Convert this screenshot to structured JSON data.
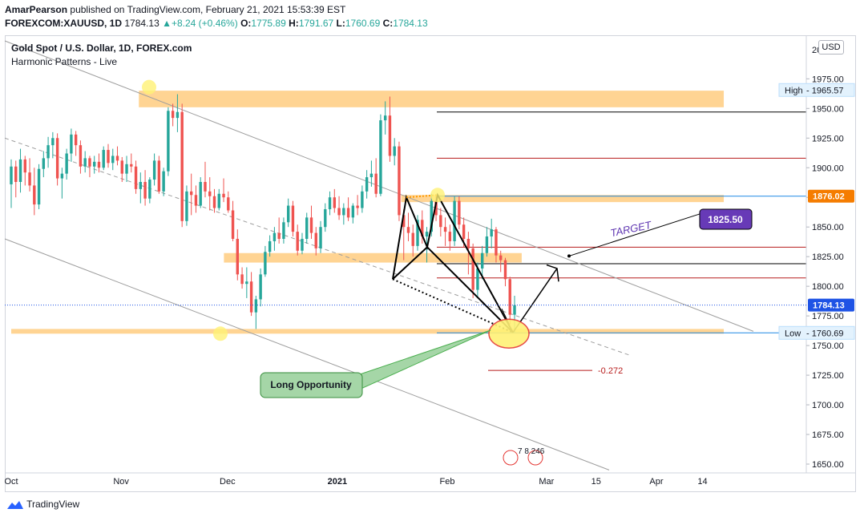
{
  "header": {
    "author": "AmarPearson",
    "published": "published on TradingView.com, February 21, 2021 15:53:39 EST",
    "symbol": "FOREXCOM:XAUUSD, 1D",
    "last": "1784.13",
    "change": "+8.24 (+0.46%)",
    "o_label": "O:",
    "o_value": "1775.89",
    "h_label": "H:",
    "h_value": "1791.67",
    "l_label": "L:",
    "l_value": "1760.69",
    "c_label": "C:",
    "c_value": "1784.13"
  },
  "currency_button": "USD",
  "footer": {
    "brand": "TradingView"
  },
  "chart_data": {
    "type": "candlestick",
    "title": "Gold Spot / U.S. Dollar, 1D, FOREX.com",
    "subtitle": "Harmonic Patterns - Live",
    "y_axis": {
      "range": [
        1645,
        2005
      ],
      "ticks": [
        1650,
        1675,
        1700,
        1725,
        1750,
        1775,
        1800,
        1825,
        1850,
        1875,
        1900,
        1925,
        1950,
        1975
      ],
      "tick_labels": [
        "1650.00",
        "1675.00",
        "1700.00",
        "1725.00",
        "1750.00",
        "1775.00",
        "1800.00",
        "1825.00",
        "1850.00",
        "1875.00",
        "1900.00",
        "1925.00",
        "1950.00",
        "1975.00"
      ],
      "top_label": "2000"
    },
    "x_axis": {
      "labels": [
        {
          "text": "Oct",
          "date": "2020-10-01",
          "bold": false
        },
        {
          "text": "Nov",
          "date": "2020-11-01",
          "bold": false
        },
        {
          "text": "Dec",
          "date": "2020-12-01",
          "bold": false
        },
        {
          "text": "2021",
          "date": "2021-01-01",
          "bold": true
        },
        {
          "text": "Feb",
          "date": "2021-02-01",
          "bold": false
        },
        {
          "text": "Mar",
          "date": "2021-03-01",
          "bold": false
        },
        {
          "text": "15",
          "date": "2021-03-15",
          "bold": false
        },
        {
          "text": "Apr",
          "date": "2021-04-01",
          "bold": false
        },
        {
          "text": "14",
          "date": "2021-04-14",
          "bold": false
        }
      ]
    },
    "candles": [
      [
        1886,
        1907,
        1866,
        1901
      ],
      [
        1901,
        1906,
        1875,
        1888
      ],
      [
        1888,
        1916,
        1879,
        1907
      ],
      [
        1907,
        1910,
        1885,
        1896
      ],
      [
        1896,
        1908,
        1880,
        1885
      ],
      [
        1885,
        1900,
        1860,
        1869
      ],
      [
        1869,
        1903,
        1865,
        1899
      ],
      [
        1899,
        1914,
        1892,
        1908
      ],
      [
        1908,
        1926,
        1900,
        1919
      ],
      [
        1919,
        1930,
        1908,
        1925
      ],
      [
        1925,
        1929,
        1885,
        1891
      ],
      [
        1891,
        1900,
        1874,
        1895
      ],
      [
        1895,
        1916,
        1890,
        1912
      ],
      [
        1912,
        1933,
        1905,
        1928
      ],
      [
        1928,
        1931,
        1910,
        1919
      ],
      [
        1919,
        1923,
        1895,
        1901
      ],
      [
        1901,
        1914,
        1896,
        1908
      ],
      [
        1908,
        1910,
        1892,
        1901
      ],
      [
        1901,
        1910,
        1895,
        1905
      ],
      [
        1905,
        1912,
        1896,
        1900
      ],
      [
        1900,
        1918,
        1898,
        1915
      ],
      [
        1915,
        1920,
        1900,
        1904
      ],
      [
        1904,
        1916,
        1898,
        1910
      ],
      [
        1910,
        1918,
        1902,
        1906
      ],
      [
        1906,
        1909,
        1888,
        1895
      ],
      [
        1895,
        1910,
        1888,
        1903
      ],
      [
        1903,
        1912,
        1896,
        1901
      ],
      [
        1901,
        1906,
        1878,
        1882
      ],
      [
        1882,
        1896,
        1870,
        1888
      ],
      [
        1888,
        1898,
        1868,
        1874
      ],
      [
        1874,
        1892,
        1870,
        1890
      ],
      [
        1890,
        1912,
        1885,
        1906
      ],
      [
        1906,
        1910,
        1878,
        1880
      ],
      [
        1880,
        1900,
        1876,
        1897
      ],
      [
        1897,
        1951,
        1893,
        1948
      ],
      [
        1948,
        1954,
        1935,
        1942
      ],
      [
        1942,
        1962,
        1930,
        1947
      ],
      [
        1947,
        1954,
        1850,
        1855
      ],
      [
        1855,
        1885,
        1851,
        1880
      ],
      [
        1880,
        1895,
        1860,
        1877
      ],
      [
        1877,
        1885,
        1862,
        1868
      ],
      [
        1868,
        1892,
        1866,
        1888
      ],
      [
        1888,
        1905,
        1875,
        1880
      ],
      [
        1880,
        1892,
        1864,
        1876
      ],
      [
        1876,
        1882,
        1862,
        1866
      ],
      [
        1866,
        1882,
        1864,
        1878
      ],
      [
        1878,
        1891,
        1871,
        1875
      ],
      [
        1875,
        1880,
        1862,
        1864
      ],
      [
        1864,
        1872,
        1838,
        1840
      ],
      [
        1840,
        1848,
        1805,
        1810
      ],
      [
        1810,
        1816,
        1798,
        1802
      ],
      [
        1802,
        1816,
        1790,
        1804
      ],
      [
        1804,
        1812,
        1775,
        1778
      ],
      [
        1778,
        1792,
        1764,
        1789
      ],
      [
        1789,
        1815,
        1783,
        1810
      ],
      [
        1810,
        1834,
        1808,
        1829
      ],
      [
        1829,
        1843,
        1825,
        1838
      ],
      [
        1838,
        1850,
        1830,
        1845
      ],
      [
        1845,
        1858,
        1836,
        1840
      ],
      [
        1840,
        1858,
        1836,
        1854
      ],
      [
        1854,
        1874,
        1850,
        1868
      ],
      [
        1868,
        1872,
        1842,
        1846
      ],
      [
        1846,
        1852,
        1826,
        1830
      ],
      [
        1830,
        1845,
        1827,
        1840
      ],
      [
        1840,
        1862,
        1836,
        1858
      ],
      [
        1858,
        1868,
        1840,
        1845
      ],
      [
        1845,
        1850,
        1826,
        1832
      ],
      [
        1832,
        1855,
        1828,
        1850
      ],
      [
        1850,
        1870,
        1846,
        1865
      ],
      [
        1865,
        1880,
        1860,
        1875
      ],
      [
        1875,
        1882,
        1862,
        1866
      ],
      [
        1866,
        1876,
        1856,
        1860
      ],
      [
        1860,
        1870,
        1852,
        1866
      ],
      [
        1866,
        1875,
        1855,
        1858
      ],
      [
        1858,
        1870,
        1853,
        1868
      ],
      [
        1868,
        1877,
        1860,
        1866
      ],
      [
        1866,
        1885,
        1862,
        1880
      ],
      [
        1880,
        1898,
        1874,
        1892
      ],
      [
        1892,
        1906,
        1884,
        1895
      ],
      [
        1895,
        1908,
        1875,
        1878
      ],
      [
        1878,
        1945,
        1876,
        1940
      ],
      [
        1940,
        1956,
        1928,
        1944
      ],
      [
        1944,
        1960,
        1905,
        1910
      ],
      [
        1910,
        1925,
        1902,
        1918
      ],
      [
        1918,
        1922,
        1855,
        1860
      ],
      [
        1860,
        1865,
        1822,
        1850
      ],
      [
        1850,
        1862,
        1838,
        1845
      ],
      [
        1845,
        1852,
        1825,
        1834
      ],
      [
        1834,
        1860,
        1830,
        1856
      ],
      [
        1856,
        1864,
        1836,
        1842
      ],
      [
        1842,
        1850,
        1820,
        1846
      ],
      [
        1846,
        1878,
        1842,
        1872
      ],
      [
        1872,
        1876,
        1855,
        1860
      ],
      [
        1860,
        1866,
        1842,
        1850
      ],
      [
        1850,
        1858,
        1834,
        1846
      ],
      [
        1846,
        1852,
        1830,
        1838
      ],
      [
        1838,
        1876,
        1834,
        1872
      ],
      [
        1872,
        1876,
        1848,
        1852
      ],
      [
        1852,
        1858,
        1833,
        1840
      ],
      [
        1840,
        1846,
        1810,
        1832
      ],
      [
        1832,
        1836,
        1790,
        1797
      ],
      [
        1797,
        1820,
        1790,
        1815
      ],
      [
        1815,
        1834,
        1806,
        1828
      ],
      [
        1828,
        1850,
        1825,
        1842
      ],
      [
        1842,
        1857,
        1832,
        1848
      ],
      [
        1848,
        1850,
        1820,
        1826
      ],
      [
        1826,
        1830,
        1812,
        1822
      ],
      [
        1822,
        1824,
        1800,
        1806
      ],
      [
        1806,
        1808,
        1768,
        1776
      ],
      [
        1776,
        1792,
        1761,
        1784
      ]
    ],
    "zones": [
      {
        "low": 1951,
        "high": 1965,
        "x_from": "2020-11-06",
        "x_to": "2021-04-20"
      },
      {
        "low": 1871,
        "high": 1877,
        "x_from": "2021-01-19",
        "x_to": "2021-04-20"
      },
      {
        "low": 1820,
        "high": 1828,
        "x_from": "2020-11-30",
        "x_to": "2021-02-22"
      },
      {
        "low": 1760,
        "high": 1764,
        "x_from": "2020-10-01",
        "x_to": "2021-04-20"
      }
    ],
    "levels": [
      {
        "value": 1947,
        "color": "#000000"
      },
      {
        "value": 1908,
        "color": "#b71c1c"
      },
      {
        "value": 1876,
        "color": "#1e88e5"
      },
      {
        "value": 1833,
        "color": "#b71c1c"
      },
      {
        "value": 1819,
        "color": "#000000"
      },
      {
        "value": 1807,
        "color": "#b71c1c"
      },
      {
        "value": 1760.69,
        "color": "#1e88e5"
      },
      {
        "value": 1729,
        "color": "#b71c1c",
        "label": "-0.272"
      }
    ],
    "price_labels": [
      {
        "text": "High",
        "value_text": "1965.57",
        "value": 1965.57,
        "style": "hl"
      },
      {
        "text": "",
        "value_text": "1876.02",
        "value": 1876.02,
        "style": "orange"
      },
      {
        "text": "",
        "value_text": "1784.13",
        "value": 1784.13,
        "style": "blue"
      },
      {
        "text": "Low",
        "value_text": "1760.69",
        "value": 1760.69,
        "style": "hl"
      }
    ],
    "annotations": {
      "target_label": "TARGET",
      "target_value": "1825.50",
      "long_label": "Long Opportunity",
      "icon_counts": "7  8  246"
    },
    "colors": {
      "up": "#26a69a",
      "down": "#ef5350",
      "zone": "#ffcc80",
      "target_box": "#673ab7",
      "callout": "#a5d6a7"
    }
  }
}
